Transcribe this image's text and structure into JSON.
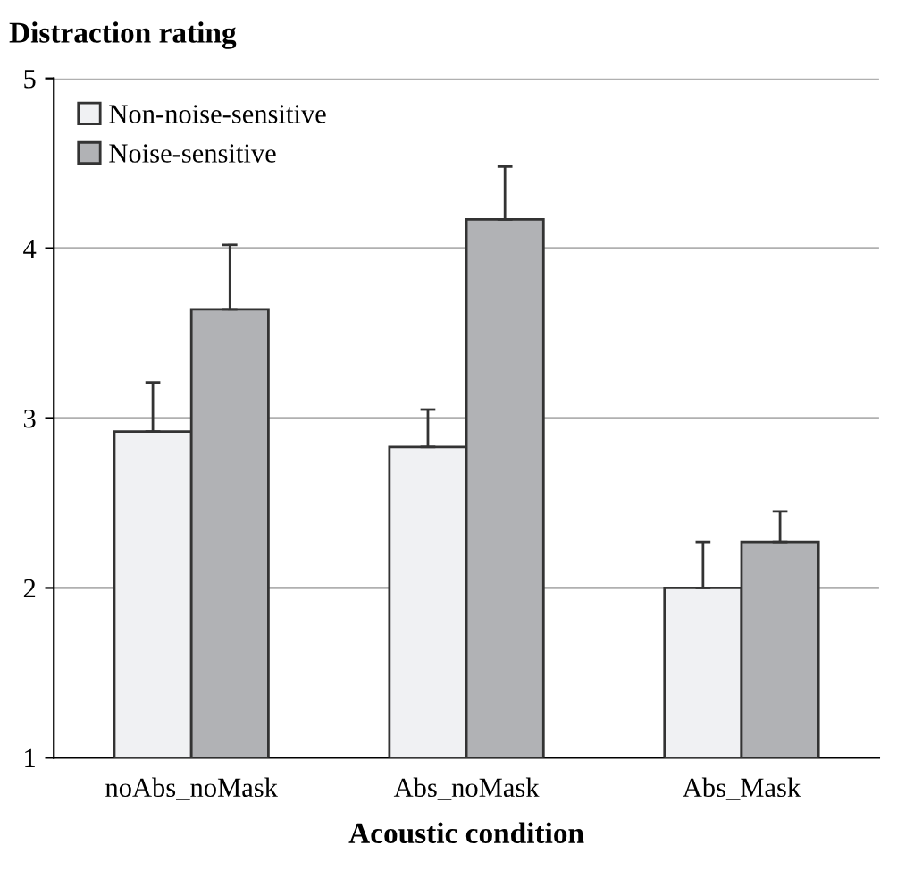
{
  "chart_data": {
    "type": "bar",
    "title": "Distraction rating",
    "xlabel": "Acoustic condition",
    "categories": [
      "noAbs_noMask",
      "Abs_noMask",
      "Abs_Mask"
    ],
    "series": [
      {
        "name": "Non-noise-sensitive",
        "color": "#f0f1f3",
        "values": [
          2.92,
          2.83,
          2.0
        ],
        "errors": [
          [
            2.92,
            3.21
          ],
          [
            2.83,
            3.05
          ],
          [
            2.0,
            2.27
          ]
        ]
      },
      {
        "name": "Noise-sensitive",
        "color": "#b1b2b5",
        "values": [
          3.64,
          4.17,
          2.27
        ],
        "errors": [
          [
            3.64,
            4.02
          ],
          [
            4.17,
            4.48
          ],
          [
            2.27,
            2.45
          ]
        ]
      }
    ],
    "ylim": [
      1,
      5
    ],
    "yticks": [
      1,
      2,
      3,
      4,
      5
    ],
    "grid": "y",
    "legend": "top left"
  }
}
